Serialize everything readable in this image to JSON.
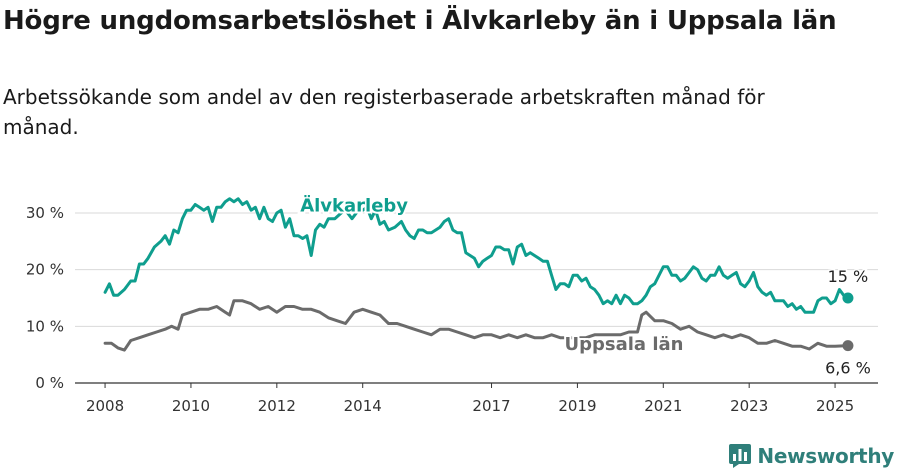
{
  "title": "Högre ungdomsarbetslöshet i Älvkarleby än i Uppsala län",
  "subtitle": "Arbetssökande som andel av den registerbaserade arbetskraften månad för månad.",
  "brand": {
    "name": "Newsworthy",
    "color": "#2f7f7a",
    "icon": "bar-chart-logo-icon"
  },
  "chart_data": {
    "type": "line",
    "x_unit": "year",
    "xlim": [
      2007.3,
      2026.0
    ],
    "ylim": [
      0,
      33
    ],
    "x_ticks": [
      {
        "value": 2008,
        "label": "2008"
      },
      {
        "value": 2010,
        "label": "2010"
      },
      {
        "value": 2012,
        "label": "2012"
      },
      {
        "value": 2014,
        "label": "2014"
      },
      {
        "value": 2017,
        "label": "2017"
      },
      {
        "value": 2019,
        "label": "2019"
      },
      {
        "value": 2021,
        "label": "2021"
      },
      {
        "value": 2023,
        "label": "2023"
      },
      {
        "value": 2025,
        "label": "2025"
      }
    ],
    "y_ticks": [
      {
        "value": 0,
        "label": "0 %"
      },
      {
        "value": 10,
        "label": "10 %"
      },
      {
        "value": 20,
        "label": "20 %"
      },
      {
        "value": 30,
        "label": "30 %"
      }
    ],
    "grid": true,
    "series": [
      {
        "name": "Älvkarleby",
        "label": "Älvkarleby",
        "color": "#0f9e8e",
        "end_label": "15 %",
        "points": [
          [
            2008.0,
            16.0
          ],
          [
            2008.1,
            17.5
          ],
          [
            2008.2,
            15.5
          ],
          [
            2008.3,
            15.5
          ],
          [
            2008.45,
            16.5
          ],
          [
            2008.6,
            18.0
          ],
          [
            2008.7,
            18.0
          ],
          [
            2008.8,
            21.0
          ],
          [
            2008.9,
            21.0
          ],
          [
            2009.0,
            22.0
          ],
          [
            2009.15,
            24.0
          ],
          [
            2009.3,
            25.0
          ],
          [
            2009.4,
            26.0
          ],
          [
            2009.5,
            24.5
          ],
          [
            2009.6,
            27.0
          ],
          [
            2009.7,
            26.5
          ],
          [
            2009.8,
            29.0
          ],
          [
            2009.9,
            30.5
          ],
          [
            2010.0,
            30.5
          ],
          [
            2010.1,
            31.5
          ],
          [
            2010.2,
            31.0
          ],
          [
            2010.3,
            30.5
          ],
          [
            2010.4,
            31.0
          ],
          [
            2010.5,
            28.5
          ],
          [
            2010.6,
            31.0
          ],
          [
            2010.7,
            31.0
          ],
          [
            2010.8,
            32.0
          ],
          [
            2010.9,
            32.5
          ],
          [
            2011.0,
            32.0
          ],
          [
            2011.1,
            32.5
          ],
          [
            2011.2,
            31.5
          ],
          [
            2011.3,
            32.0
          ],
          [
            2011.4,
            30.5
          ],
          [
            2011.5,
            31.0
          ],
          [
            2011.6,
            29.0
          ],
          [
            2011.7,
            31.0
          ],
          [
            2011.8,
            29.0
          ],
          [
            2011.9,
            28.5
          ],
          [
            2012.0,
            30.0
          ],
          [
            2012.1,
            30.5
          ],
          [
            2012.2,
            27.5
          ],
          [
            2012.3,
            29.0
          ],
          [
            2012.4,
            26.0
          ],
          [
            2012.5,
            26.0
          ],
          [
            2012.6,
            25.5
          ],
          [
            2012.7,
            26.0
          ],
          [
            2012.8,
            22.5
          ],
          [
            2012.9,
            27.0
          ],
          [
            2013.0,
            28.0
          ],
          [
            2013.1,
            27.5
          ],
          [
            2013.2,
            29.0
          ],
          [
            2013.35,
            29.0
          ],
          [
            2013.5,
            30.0
          ],
          [
            2013.6,
            30.5
          ],
          [
            2013.75,
            29.0
          ],
          [
            2013.9,
            30.5
          ],
          [
            2014.0,
            30.5
          ],
          [
            2014.1,
            31.0
          ],
          [
            2014.2,
            29.0
          ],
          [
            2014.3,
            30.5
          ],
          [
            2014.4,
            28.0
          ],
          [
            2014.5,
            28.5
          ],
          [
            2014.6,
            27.0
          ],
          [
            2014.75,
            27.5
          ],
          [
            2014.9,
            28.5
          ],
          [
            2015.0,
            27.0
          ],
          [
            2015.1,
            26.0
          ],
          [
            2015.2,
            25.5
          ],
          [
            2015.3,
            27.0
          ],
          [
            2015.4,
            27.0
          ],
          [
            2015.5,
            26.5
          ],
          [
            2015.6,
            26.5
          ],
          [
            2015.7,
            27.0
          ],
          [
            2015.8,
            27.5
          ],
          [
            2015.9,
            28.5
          ],
          [
            2016.0,
            29.0
          ],
          [
            2016.1,
            27.0
          ],
          [
            2016.2,
            26.5
          ],
          [
            2016.3,
            26.5
          ],
          [
            2016.4,
            23.0
          ],
          [
            2016.5,
            22.5
          ],
          [
            2016.6,
            22.0
          ],
          [
            2016.7,
            20.5
          ],
          [
            2016.8,
            21.5
          ],
          [
            2016.9,
            22.0
          ],
          [
            2017.0,
            22.5
          ],
          [
            2017.1,
            24.0
          ],
          [
            2017.2,
            24.0
          ],
          [
            2017.3,
            23.5
          ],
          [
            2017.4,
            23.5
          ],
          [
            2017.5,
            21.0
          ],
          [
            2017.6,
            24.0
          ],
          [
            2017.7,
            24.5
          ],
          [
            2017.8,
            22.5
          ],
          [
            2017.9,
            23.0
          ],
          [
            2018.0,
            22.5
          ],
          [
            2018.1,
            22.0
          ],
          [
            2018.2,
            21.5
          ],
          [
            2018.3,
            21.5
          ],
          [
            2018.4,
            19.0
          ],
          [
            2018.5,
            16.5
          ],
          [
            2018.6,
            17.5
          ],
          [
            2018.7,
            17.5
          ],
          [
            2018.8,
            17.0
          ],
          [
            2018.9,
            19.0
          ],
          [
            2019.0,
            19.0
          ],
          [
            2019.1,
            18.0
          ],
          [
            2019.2,
            18.5
          ],
          [
            2019.3,
            17.0
          ],
          [
            2019.4,
            16.5
          ],
          [
            2019.5,
            15.5
          ],
          [
            2019.6,
            14.0
          ],
          [
            2019.7,
            14.5
          ],
          [
            2019.8,
            14.0
          ],
          [
            2019.9,
            15.5
          ],
          [
            2020.0,
            14.0
          ],
          [
            2020.1,
            15.5
          ],
          [
            2020.2,
            15.0
          ],
          [
            2020.3,
            14.0
          ],
          [
            2020.4,
            14.0
          ],
          [
            2020.5,
            14.5
          ],
          [
            2020.6,
            15.5
          ],
          [
            2020.7,
            17.0
          ],
          [
            2020.8,
            17.5
          ],
          [
            2020.9,
            19.0
          ],
          [
            2021.0,
            20.5
          ],
          [
            2021.1,
            20.5
          ],
          [
            2021.2,
            19.0
          ],
          [
            2021.3,
            19.0
          ],
          [
            2021.4,
            18.0
          ],
          [
            2021.5,
            18.5
          ],
          [
            2021.6,
            19.5
          ],
          [
            2021.7,
            20.5
          ],
          [
            2021.8,
            20.0
          ],
          [
            2021.9,
            18.5
          ],
          [
            2022.0,
            18.0
          ],
          [
            2022.1,
            19.0
          ],
          [
            2022.2,
            19.0
          ],
          [
            2022.3,
            20.5
          ],
          [
            2022.4,
            19.0
          ],
          [
            2022.5,
            18.5
          ],
          [
            2022.6,
            19.0
          ],
          [
            2022.7,
            19.5
          ],
          [
            2022.8,
            17.5
          ],
          [
            2022.9,
            17.0
          ],
          [
            2023.0,
            18.0
          ],
          [
            2023.1,
            19.5
          ],
          [
            2023.2,
            17.0
          ],
          [
            2023.3,
            16.0
          ],
          [
            2023.4,
            15.5
          ],
          [
            2023.5,
            16.0
          ],
          [
            2023.6,
            14.5
          ],
          [
            2023.7,
            14.5
          ],
          [
            2023.8,
            14.5
          ],
          [
            2023.9,
            13.5
          ],
          [
            2024.0,
            14.0
          ],
          [
            2024.1,
            13.0
          ],
          [
            2024.2,
            13.5
          ],
          [
            2024.3,
            12.5
          ],
          [
            2024.4,
            12.5
          ],
          [
            2024.5,
            12.5
          ],
          [
            2024.6,
            14.5
          ],
          [
            2024.7,
            15.0
          ],
          [
            2024.8,
            15.0
          ],
          [
            2024.9,
            14.0
          ],
          [
            2025.0,
            14.5
          ],
          [
            2025.1,
            16.5
          ],
          [
            2025.2,
            15.5
          ],
          [
            2025.3,
            15.0
          ]
        ]
      },
      {
        "name": "Uppsala län",
        "label": "Uppsala län",
        "color": "#6b6b6b",
        "end_label": "6,6 %",
        "points": [
          [
            2008.0,
            7.0
          ],
          [
            2008.15,
            7.0
          ],
          [
            2008.3,
            6.2
          ],
          [
            2008.45,
            5.8
          ],
          [
            2008.6,
            7.5
          ],
          [
            2008.8,
            8.0
          ],
          [
            2009.0,
            8.5
          ],
          [
            2009.2,
            9.0
          ],
          [
            2009.4,
            9.5
          ],
          [
            2009.55,
            10.0
          ],
          [
            2009.7,
            9.5
          ],
          [
            2009.8,
            12.0
          ],
          [
            2010.0,
            12.5
          ],
          [
            2010.2,
            13.0
          ],
          [
            2010.4,
            13.0
          ],
          [
            2010.6,
            13.5
          ],
          [
            2010.8,
            12.5
          ],
          [
            2010.9,
            12.0
          ],
          [
            2011.0,
            14.5
          ],
          [
            2011.2,
            14.5
          ],
          [
            2011.4,
            14.0
          ],
          [
            2011.6,
            13.0
          ],
          [
            2011.8,
            13.5
          ],
          [
            2012.0,
            12.5
          ],
          [
            2012.2,
            13.5
          ],
          [
            2012.4,
            13.5
          ],
          [
            2012.6,
            13.0
          ],
          [
            2012.8,
            13.0
          ],
          [
            2013.0,
            12.5
          ],
          [
            2013.2,
            11.5
          ],
          [
            2013.4,
            11.0
          ],
          [
            2013.6,
            10.5
          ],
          [
            2013.8,
            12.5
          ],
          [
            2014.0,
            13.0
          ],
          [
            2014.2,
            12.5
          ],
          [
            2014.4,
            12.0
          ],
          [
            2014.6,
            10.5
          ],
          [
            2014.8,
            10.5
          ],
          [
            2015.0,
            10.0
          ],
          [
            2015.2,
            9.5
          ],
          [
            2015.4,
            9.0
          ],
          [
            2015.6,
            8.5
          ],
          [
            2015.8,
            9.5
          ],
          [
            2016.0,
            9.5
          ],
          [
            2016.2,
            9.0
          ],
          [
            2016.4,
            8.5
          ],
          [
            2016.6,
            8.0
          ],
          [
            2016.8,
            8.5
          ],
          [
            2017.0,
            8.5
          ],
          [
            2017.2,
            8.0
          ],
          [
            2017.4,
            8.5
          ],
          [
            2017.6,
            8.0
          ],
          [
            2017.8,
            8.5
          ],
          [
            2018.0,
            8.0
          ],
          [
            2018.2,
            8.0
          ],
          [
            2018.4,
            8.5
          ],
          [
            2018.6,
            8.0
          ],
          [
            2018.8,
            8.0
          ],
          [
            2019.0,
            8.0
          ],
          [
            2019.2,
            8.0
          ],
          [
            2019.4,
            8.5
          ],
          [
            2019.6,
            8.5
          ],
          [
            2019.8,
            8.5
          ],
          [
            2020.0,
            8.5
          ],
          [
            2020.2,
            9.0
          ],
          [
            2020.4,
            9.0
          ],
          [
            2020.5,
            12.0
          ],
          [
            2020.6,
            12.5
          ],
          [
            2020.8,
            11.0
          ],
          [
            2021.0,
            11.0
          ],
          [
            2021.2,
            10.5
          ],
          [
            2021.4,
            9.5
          ],
          [
            2021.6,
            10.0
          ],
          [
            2021.8,
            9.0
          ],
          [
            2022.0,
            8.5
          ],
          [
            2022.2,
            8.0
          ],
          [
            2022.4,
            8.5
          ],
          [
            2022.6,
            8.0
          ],
          [
            2022.8,
            8.5
          ],
          [
            2023.0,
            8.0
          ],
          [
            2023.2,
            7.0
          ],
          [
            2023.4,
            7.0
          ],
          [
            2023.6,
            7.5
          ],
          [
            2023.8,
            7.0
          ],
          [
            2024.0,
            6.5
          ],
          [
            2024.2,
            6.5
          ],
          [
            2024.4,
            6.0
          ],
          [
            2024.6,
            7.0
          ],
          [
            2024.8,
            6.5
          ],
          [
            2025.0,
            6.5
          ],
          [
            2025.3,
            6.6
          ]
        ]
      }
    ]
  }
}
